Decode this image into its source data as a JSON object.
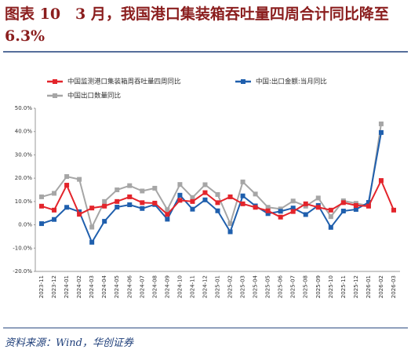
{
  "chart_data": {
    "type": "line",
    "title": "图表 10　3 月，我国港口集装箱吞吐量四周合计同比降至 6.3%",
    "source": "资料来源：Wind，华创证券",
    "categories": [
      "2023-11",
      "2023-12",
      "2024-01",
      "2024-02",
      "2024-03",
      "2024-04",
      "2024-05",
      "2024-06",
      "2024-07",
      "2024-08",
      "2024-09",
      "2024-10",
      "2024-11",
      "2024-12",
      "2025-01",
      "2025-02",
      "2025-03",
      "2025-04",
      "2025-05",
      "2025-06",
      "2025-07",
      "2025-08",
      "2025-09",
      "2025-10",
      "2025-11",
      "2025-12",
      "2026-01",
      "2026-02",
      "2026-03"
    ],
    "series": [
      {
        "name": "中国监测港口集装箱周吞吐量四周同比",
        "color": "#e3242b",
        "values": [
          8.0,
          6.3,
          17.0,
          4.5,
          7.2,
          8.0,
          10.0,
          12.0,
          9.5,
          9.3,
          4.5,
          10.5,
          10.0,
          13.8,
          9.5,
          12.0,
          9.0,
          7.5,
          6.0,
          3.3,
          5.7,
          9.0,
          7.5,
          6.3,
          9.5,
          8.3,
          8.0,
          19.0,
          6.3
        ]
      },
      {
        "name": "中国:出口金额:当月同比",
        "color": "#1f5fad",
        "values": [
          0.5,
          2.3,
          7.5,
          5.6,
          -7.5,
          1.5,
          7.6,
          8.6,
          7.0,
          8.7,
          2.4,
          12.7,
          6.7,
          10.7,
          6.0,
          -3.0,
          12.4,
          8.1,
          4.8,
          5.8,
          7.2,
          4.4,
          8.3,
          -1.1,
          5.9,
          6.6,
          9.6,
          39.6,
          null
        ]
      },
      {
        "name": "中国出口数量同比",
        "color": "#a6a6a6",
        "values": [
          12.0,
          13.5,
          20.7,
          19.5,
          -1.0,
          10.0,
          15.0,
          16.8,
          14.5,
          15.7,
          6.5,
          17.3,
          11.7,
          17.2,
          13.0,
          0.5,
          18.4,
          13.2,
          7.5,
          6.8,
          10.2,
          8.0,
          11.5,
          3.5,
          10.3,
          9.2,
          8.2,
          43.3,
          null
        ]
      }
    ],
    "ylim": [
      -20,
      50
    ],
    "yticks": [
      {
        "value": -20,
        "label": "-20.0%"
      },
      {
        "value": -10,
        "label": "-10.0%"
      },
      {
        "value": 0,
        "label": "0.0%"
      },
      {
        "value": 10,
        "label": "10.0%"
      },
      {
        "value": 20,
        "label": "20.0%"
      },
      {
        "value": 30,
        "label": "30.0%"
      },
      {
        "value": 40,
        "label": "40.0%"
      },
      {
        "value": 50,
        "label": "50.0%"
      }
    ],
    "grid": false
  }
}
